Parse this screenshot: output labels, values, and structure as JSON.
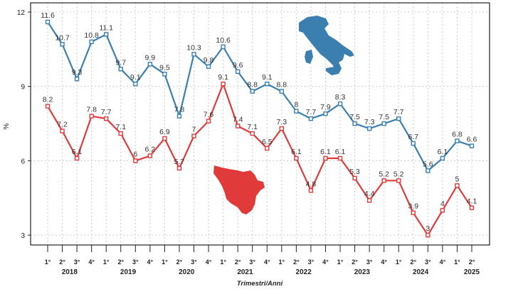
{
  "chart_data": {
    "type": "line",
    "title": "",
    "xlabel": "Trimestri/Anni",
    "ylabel": "%",
    "ylim": [
      2.5,
      12.5
    ],
    "yticks": [
      "3",
      "6",
      "9",
      "12"
    ],
    "grid": true,
    "quarter_labels": [
      "1°",
      "2°",
      "3°",
      "4°",
      "1°",
      "2°",
      "3°",
      "4°",
      "1°",
      "2°",
      "3°",
      "4°",
      "1°",
      "2°",
      "3°",
      "4°",
      "1°",
      "2°",
      "3°",
      "4°",
      "1°",
      "2°",
      "3°",
      "4°",
      "1°",
      "2°",
      "3°",
      "4°",
      "1°",
      "2°"
    ],
    "year_labels": [
      "2018",
      "2019",
      "2020",
      "2021",
      "2022",
      "2023",
      "2024",
      "2025"
    ],
    "series": [
      {
        "color": "#3a7fb0",
        "legend_icon": "italy-map",
        "values": [
          11.6,
          10.7,
          9.3,
          10.8,
          11.1,
          9.7,
          9.1,
          9.9,
          9.5,
          7.8,
          10.3,
          9.8,
          10.6,
          9.6,
          8.8,
          9.1,
          8.8,
          8,
          7.7,
          7.9,
          8.3,
          7.5,
          7.3,
          7.5,
          7.7,
          6.7,
          5.6,
          6.1,
          6.8,
          6.6
        ],
        "labels": [
          "11.6",
          "10.7",
          "9.3",
          "10.8",
          "11.1",
          "9.7",
          "9.1",
          "9.9",
          "9.5",
          "7.8",
          "10.3",
          "9.8",
          "10.6",
          "9.6",
          "8.8",
          "9.1",
          "8.8",
          "8",
          "7.7",
          "7.9",
          "8.3",
          "7.5",
          "7.3",
          "7.5",
          "7.7",
          "6.7",
          "5.6",
          "6.1",
          "6.8",
          "6.6"
        ]
      },
      {
        "color": "#e03a3a",
        "legend_icon": "tuscany-map",
        "values": [
          8.2,
          7.2,
          6.1,
          7.8,
          7.7,
          7.1,
          6,
          6.2,
          6.9,
          5.7,
          7,
          7.6,
          9.1,
          7.4,
          7.1,
          6.5,
          7.3,
          6.1,
          4.8,
          6.1,
          6.1,
          5.3,
          4.4,
          5.2,
          5.2,
          3.9,
          3,
          4,
          5,
          4.1
        ],
        "labels": [
          "8.2",
          "7.2",
          "6.1",
          "7.8",
          "7.7",
          "7.1",
          "6",
          "6.2",
          "6.9",
          "5.7",
          "7",
          "7.6",
          "9.1",
          "7.4",
          "7.1",
          "6.5",
          "7.3",
          "6.1",
          "4.8",
          "6.1",
          "6.1",
          "5.3",
          "4.4",
          "5.2",
          "5.2",
          "3.9",
          "3",
          "4",
          "5",
          "4.1"
        ]
      }
    ]
  }
}
